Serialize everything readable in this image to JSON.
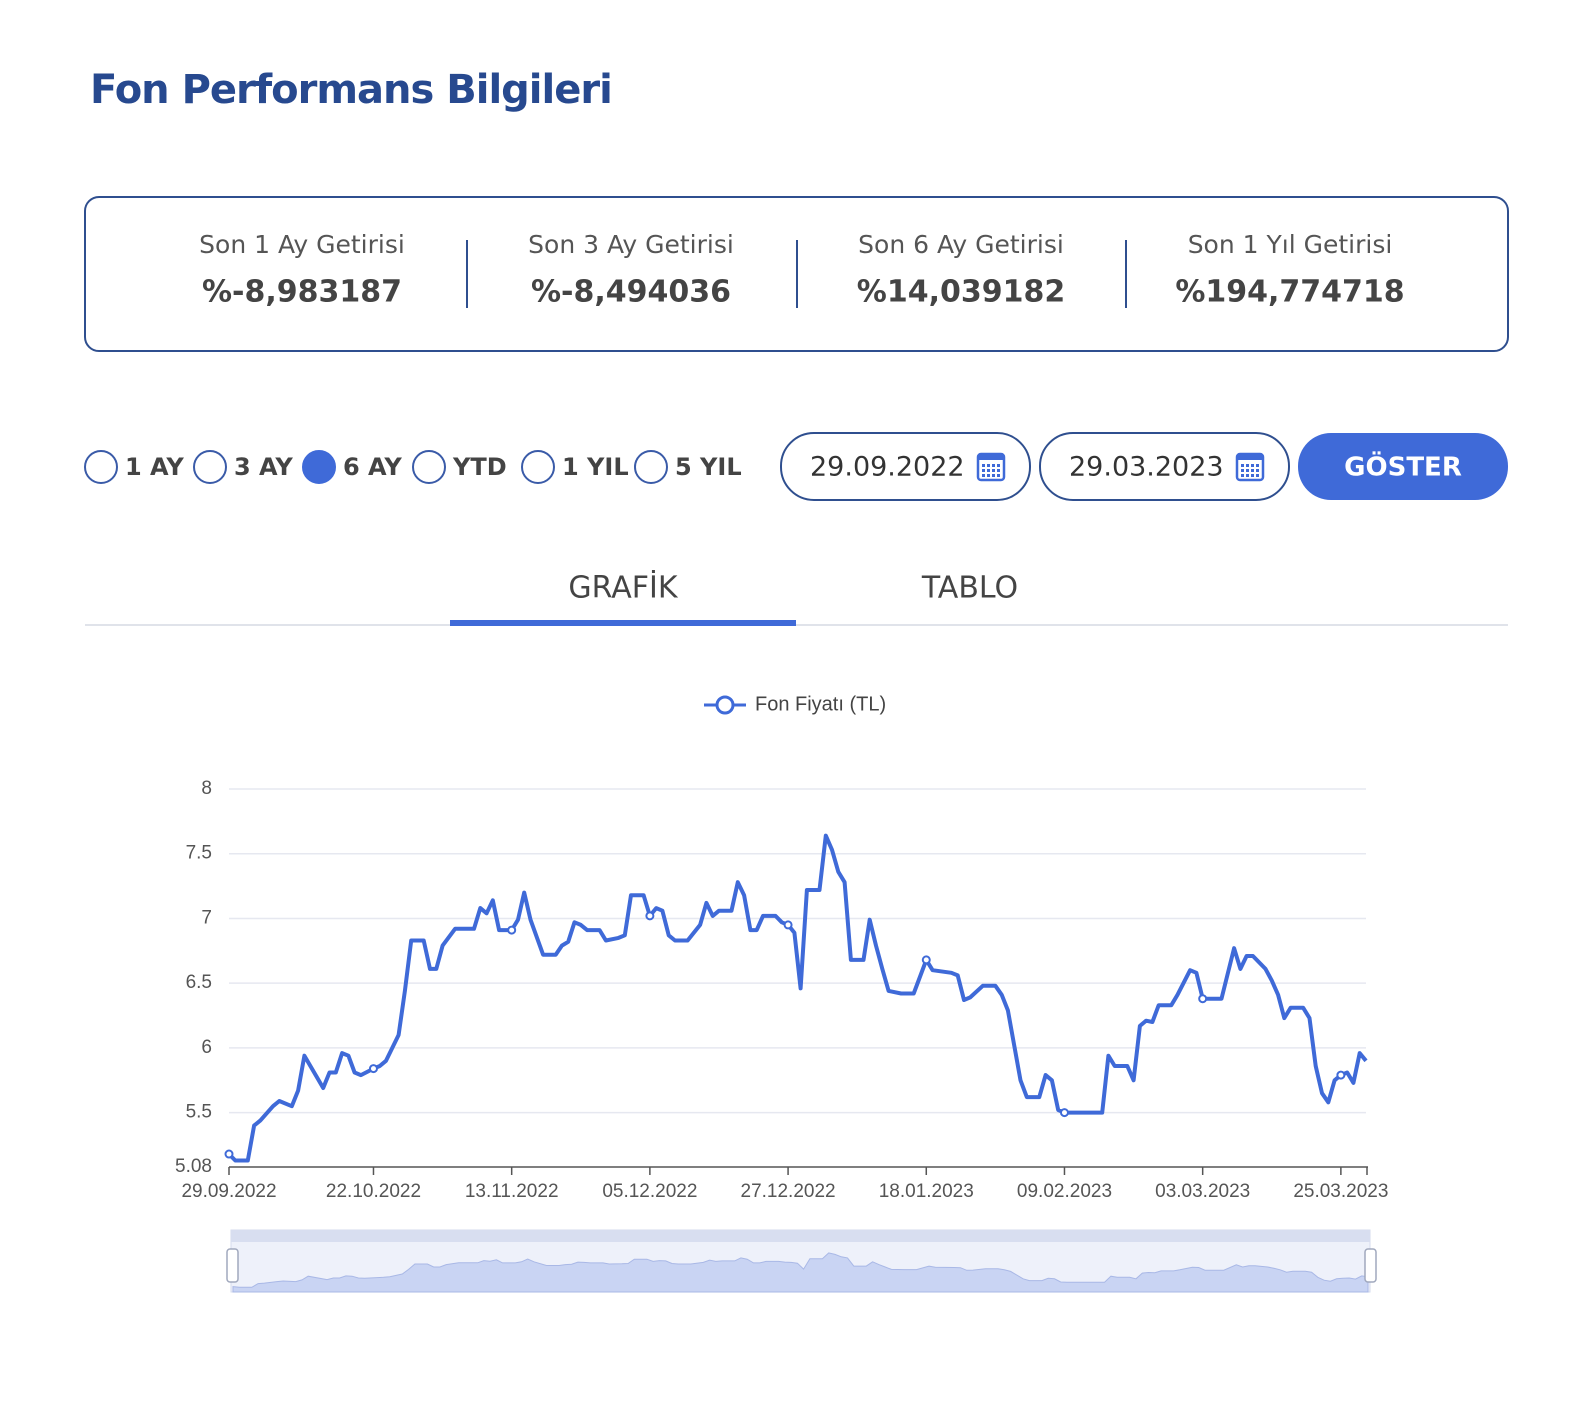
{
  "header": {
    "title": "Fon Performans Bilgileri"
  },
  "returns": [
    {
      "label": "Son 1 Ay Getirisi",
      "value": "%-8,983187"
    },
    {
      "label": "Son 3 Ay Getirisi",
      "value": "%-8,494036"
    },
    {
      "label": "Son 6 Ay Getirisi",
      "value": "%14,039182"
    },
    {
      "label": "Son 1 Yıl Getirisi",
      "value": "%194,774718"
    }
  ],
  "periods": {
    "options": [
      "1 AY",
      "3 AY",
      "6 AY",
      "YTD",
      "1 YIL",
      "5 YIL"
    ],
    "selected": "6 AY"
  },
  "date_range": {
    "start": "29.09.2022",
    "end": "29.03.2023",
    "button": "GÖSTER"
  },
  "tabs": {
    "options": [
      "GRAFİK",
      "TABLO"
    ],
    "active": "GRAFİK"
  },
  "chart_data": {
    "type": "line",
    "x": [
      "29.09.2022",
      "30.09.2022",
      "02.10.2022",
      "03.10.2022",
      "04.10.2022",
      "06.10.2022",
      "07.10.2022",
      "09.10.2022",
      "10.10.2022",
      "11.10.2022",
      "14.10.2022",
      "15.10.2022",
      "16.10.2022",
      "17.10.2022",
      "18.10.2022",
      "19.10.2022",
      "20.10.2022",
      "22.10.2022",
      "23.10.2022",
      "24.10.2022",
      "26.10.2022",
      "27.10.2022",
      "28.10.2022",
      "30.10.2022",
      "31.10.2022",
      "01.11.2022",
      "02.11.2022",
      "04.11.2022",
      "07.11.2022",
      "08.11.2022",
      "09.11.2022",
      "10.11.2022",
      "11.11.2022",
      "13.11.2022",
      "14.11.2022",
      "15.11.2022",
      "16.11.2022",
      "18.11.2022",
      "20.11.2022",
      "21.11.2022",
      "22.11.2022",
      "23.11.2022",
      "24.11.2022",
      "25.11.2022",
      "27.11.2022",
      "28.11.2022",
      "30.11.2022",
      "01.12.2022",
      "02.12.2022",
      "04.12.2022",
      "05.12.2022",
      "06.12.2022",
      "07.12.2022",
      "08.12.2022",
      "09.12.2022",
      "11.12.2022",
      "13.12.2022",
      "14.12.2022",
      "15.12.2022",
      "16.12.2022",
      "18.12.2022",
      "19.12.2022",
      "20.12.2022",
      "21.12.2022",
      "22.12.2022",
      "23.12.2022",
      "25.12.2022",
      "26.12.2022",
      "27.12.2022",
      "28.12.2022",
      "29.12.2022",
      "30.12.2022",
      "01.01.2023",
      "02.01.2023",
      "03.01.2023",
      "04.01.2023",
      "05.01.2023",
      "06.01.2023",
      "08.01.2023",
      "09.01.2023",
      "10.01.2023",
      "11.01.2023",
      "12.01.2023",
      "14.01.2023",
      "16.01.2023",
      "18.01.2023",
      "19.01.2023",
      "22.01.2023",
      "23.01.2023",
      "24.01.2023",
      "25.01.2023",
      "27.01.2023",
      "29.01.2023",
      "30.01.2023",
      "31.01.2023",
      "02.02.2023",
      "03.02.2023",
      "05.02.2023",
      "06.02.2023",
      "07.02.2023",
      "08.02.2023",
      "09.02.2023",
      "15.02.2023",
      "16.02.2023",
      "17.02.2023",
      "19.02.2023",
      "20.02.2023",
      "21.02.2023",
      "22.02.2023",
      "23.02.2023",
      "24.02.2023",
      "26.02.2023",
      "27.02.2023",
      "01.03.2023",
      "02.03.2023",
      "03.03.2023",
      "06.03.2023",
      "08.03.2023",
      "09.03.2023",
      "10.03.2023",
      "11.03.2023",
      "13.03.2023",
      "14.03.2023",
      "15.03.2023",
      "16.03.2023",
      "17.03.2023",
      "19.03.2023",
      "20.03.2023",
      "21.03.2023",
      "22.03.2023",
      "23.03.2023",
      "24.03.2023",
      "25.03.2023",
      "26.03.2023",
      "27.03.2023",
      "28.03.2023",
      "29.03.2023"
    ],
    "series": [
      {
        "name": "Fon Fiyatı (TL)",
        "color": "#3f6ad8",
        "values": [
          5.18,
          5.13,
          5.13,
          5.4,
          5.44,
          5.55,
          5.59,
          5.55,
          5.67,
          5.94,
          5.69,
          5.81,
          5.81,
          5.96,
          5.94,
          5.81,
          5.79,
          5.84,
          5.86,
          5.9,
          6.1,
          6.44,
          6.83,
          6.83,
          6.61,
          6.61,
          6.79,
          6.92,
          6.92,
          7.08,
          7.04,
          7.14,
          6.91,
          6.91,
          6.99,
          7.2,
          6.99,
          6.72,
          6.72,
          6.79,
          6.82,
          6.97,
          6.95,
          6.91,
          6.91,
          6.83,
          6.85,
          6.87,
          7.18,
          7.18,
          7.02,
          7.08,
          7.06,
          6.87,
          6.83,
          6.83,
          6.95,
          7.12,
          7.02,
          7.06,
          7.06,
          7.28,
          7.18,
          6.91,
          6.91,
          7.02,
          7.02,
          6.97,
          6.95,
          6.89,
          6.46,
          7.22,
          7.22,
          7.64,
          7.53,
          7.36,
          7.28,
          6.68,
          6.68,
          6.99,
          6.79,
          6.61,
          6.44,
          6.42,
          6.42,
          6.68,
          6.6,
          6.58,
          6.56,
          6.37,
          6.39,
          6.48,
          6.48,
          6.41,
          6.29,
          5.75,
          5.62,
          5.62,
          5.79,
          5.75,
          5.52,
          5.5,
          5.5,
          5.94,
          5.86,
          5.86,
          5.75,
          6.17,
          6.21,
          6.2,
          6.33,
          6.33,
          6.41,
          6.6,
          6.58,
          6.38,
          6.38,
          6.77,
          6.61,
          6.71,
          6.71,
          6.61,
          6.52,
          6.41,
          6.23,
          6.31,
          6.31,
          6.23,
          5.86,
          5.65,
          5.58,
          5.75,
          5.79,
          5.81,
          5.73,
          5.96,
          5.9
        ]
      }
    ],
    "xlim": [
      "29.09.2022",
      "29.03.2023"
    ],
    "xticks": [
      "29.09.2022",
      "22.10.2022",
      "13.11.2022",
      "05.12.2022",
      "27.12.2022",
      "18.01.2023",
      "09.02.2023",
      "03.03.2023",
      "25.03.2023"
    ],
    "ylim": [
      5.08,
      8
    ],
    "yticks": [
      5.08,
      5.5,
      6,
      6.5,
      7,
      7.5,
      8
    ],
    "grid": true
  }
}
